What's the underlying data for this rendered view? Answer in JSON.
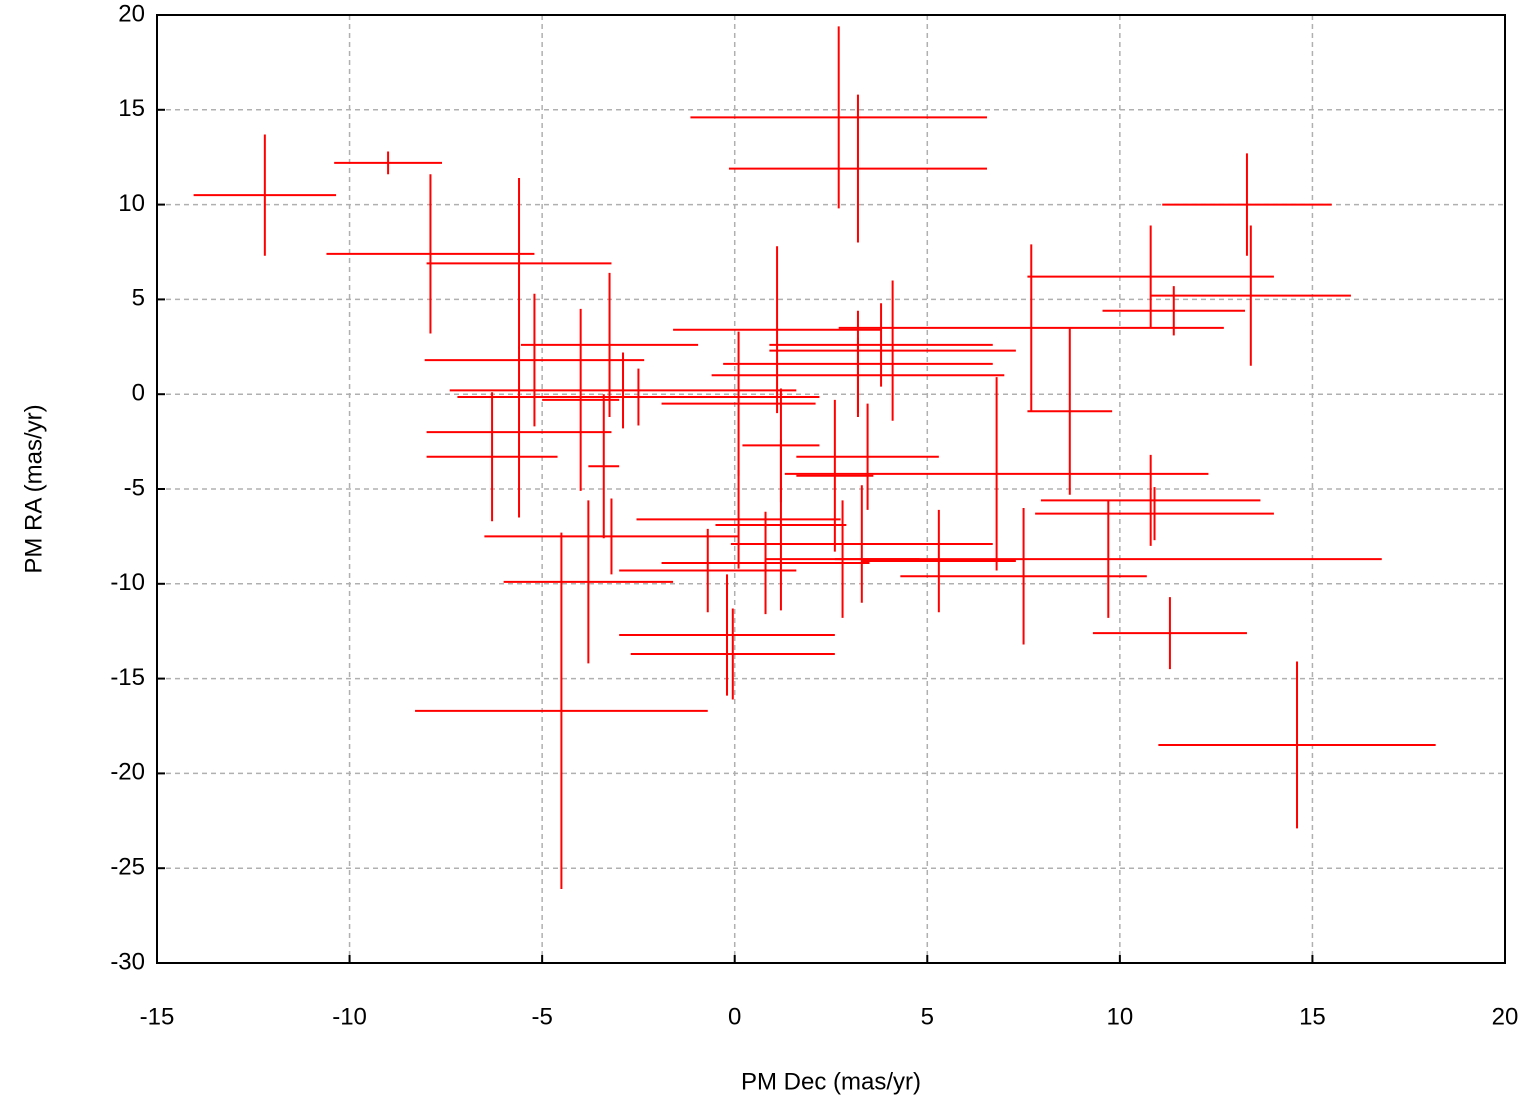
{
  "chart_data": {
    "type": "errorcross",
    "xlabel": "PM Dec (mas/yr)",
    "ylabel": "PM RA (mas/yr)",
    "color": "#ff0000",
    "x": [
      -12.2,
      -9.0,
      -7.9,
      -5.6,
      2.7,
      3.2,
      13.3,
      10.8,
      13.4,
      11.4,
      7.7,
      8.7,
      6.8,
      10.8,
      10.9,
      9.7,
      7.5,
      11.3,
      14.6,
      -4.5,
      -3.8,
      -3.2,
      -3.4,
      -0.2,
      -0.05,
      -0.7,
      0.8,
      3.3,
      0.1,
      1.2,
      2.8,
      3.45,
      2.6,
      5.3,
      1.1,
      3.8,
      4.1,
      3.2,
      3.2,
      -2.9,
      -2.5,
      -3.25,
      -5.2,
      -5.6,
      -6.3,
      -4.0,
      0.1,
      1.2
    ],
    "values": [
      10.5,
      12.2,
      7.4,
      6.9,
      14.6,
      11.9,
      10.0,
      6.2,
      5.2,
      4.4,
      3.5,
      -0.9,
      -4.2,
      -5.6,
      -6.3,
      -8.7,
      -9.6,
      -12.6,
      -18.5,
      -16.7,
      -9.9,
      -7.5,
      -3.8,
      -12.7,
      -13.7,
      -9.3,
      -8.9,
      -7.9,
      -6.6,
      -6.9,
      -8.7,
      -3.3,
      -4.3,
      -8.8,
      3.4,
      2.6,
      2.3,
      1.6,
      1.0,
      0.2,
      -0.15,
      2.6,
      1.8,
      -2.0,
      -3.3,
      -0.3,
      -0.5,
      -2.7
    ],
    "xerr": [
      1.85,
      1.4,
      2.7,
      2.4,
      3.85,
      3.35,
      2.2,
      3.2,
      2.6,
      1.85,
      5.0,
      1.1,
      5.5,
      2.85,
      3.1,
      7.1,
      3.2,
      2.0,
      3.6,
      3.8,
      2.2,
      3.3,
      0.4,
      2.8,
      2.65,
      2.3,
      2.7,
      3.4,
      2.65,
      1.7,
      2.0,
      1.85,
      1.0,
      2.0,
      2.7,
      2.9,
      3.2,
      3.5,
      3.8,
      4.5,
      4.7,
      2.3,
      2.85,
      2.4,
      1.7,
      1.0,
      2.0,
      1.0
    ],
    "yerr": [
      3.2,
      0.6,
      4.2,
      4.5,
      4.8,
      3.9,
      2.7,
      2.7,
      3.7,
      1.3,
      4.4,
      4.4,
      5.1,
      2.4,
      1.4,
      3.1,
      3.6,
      1.9,
      4.4,
      9.4,
      4.3,
      2.0,
      3.8,
      3.2,
      2.4,
      2.2,
      2.7,
      3.1,
      2.6,
      4.5,
      3.1,
      2.8,
      4.0,
      2.7,
      4.4,
      2.2,
      3.7,
      2.8,
      2.0,
      2.0,
      1.5,
      3.8,
      3.5,
      4.5,
      3.4,
      4.8,
      3.8,
      3.0
    ],
    "xlim": [
      -15,
      20
    ],
    "xticks": [
      -15,
      -10,
      -5,
      0,
      5,
      10,
      15,
      20
    ],
    "ylim": [
      -30,
      20
    ],
    "yticks": [
      -30,
      -25,
      -20,
      -15,
      -10,
      -5,
      0,
      5,
      10,
      15,
      20
    ],
    "grid": true
  }
}
